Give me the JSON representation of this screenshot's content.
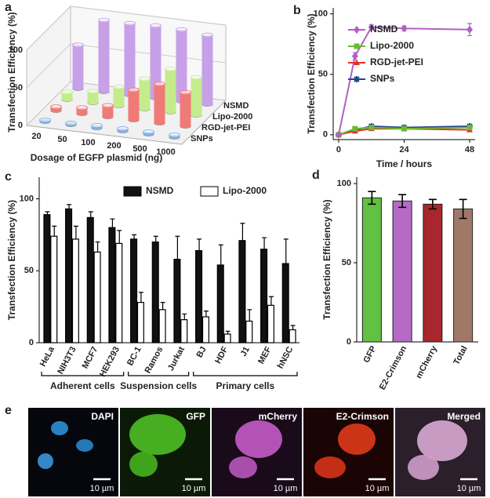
{
  "chart_data": [
    {
      "type": "bar3d",
      "panel": "a",
      "categories": [
        "20",
        "50",
        "100",
        "200",
        "500",
        "1000"
      ],
      "series": [
        {
          "name": "SNPs",
          "color": "#7fb0e8",
          "values": [
            2,
            2,
            3,
            3,
            3,
            3
          ]
        },
        {
          "name": "RGD-jet-PEI",
          "color": "#f07a78",
          "values": [
            5,
            8,
            15,
            40,
            52,
            45
          ]
        },
        {
          "name": "Lipo-2000",
          "color": "#c4ec8c",
          "values": [
            10,
            15,
            25,
            40,
            57,
            50
          ]
        },
        {
          "name": "NSMD",
          "color": "#c7a0e8",
          "values": [
            58,
            95,
            95,
            96,
            95,
            92
          ]
        }
      ],
      "ylim": [
        0,
        100
      ],
      "yticks": [
        0,
        50,
        100
      ],
      "xlabel": "Dosage of EGFP plasmid (ng)",
      "ylabel": "Transfection Efficiency (%)"
    },
    {
      "type": "line",
      "panel": "b",
      "x": [
        0,
        6,
        12,
        24,
        48
      ],
      "series": [
        {
          "name": "NSMD",
          "color": "#b45fc4",
          "marker": "diamond",
          "values": [
            0,
            65,
            89,
            88,
            87
          ],
          "errors": [
            0,
            3,
            2,
            2,
            5
          ]
        },
        {
          "name": "Lipo-2000",
          "color": "#6cbb2f",
          "marker": "square",
          "values": [
            0,
            5,
            6,
            5,
            6
          ],
          "errors": [
            0,
            1,
            1,
            1,
            1
          ]
        },
        {
          "name": "RGD-jet-PEI",
          "color": "#e0302a",
          "marker": "triangle",
          "values": [
            0,
            3,
            5,
            5,
            4
          ],
          "errors": [
            0,
            1,
            1,
            1,
            1
          ]
        },
        {
          "name": "SNPs",
          "color": "#23448f",
          "marker": "cross",
          "values": [
            0,
            4,
            7,
            6,
            7
          ],
          "errors": [
            0,
            1,
            1,
            1,
            1
          ]
        }
      ],
      "xlim": [
        -2,
        50
      ],
      "xticks": [
        0,
        24,
        48
      ],
      "ylim": [
        -4,
        105
      ],
      "yticks": [
        0,
        50,
        100
      ],
      "xlabel": "Time / hours",
      "ylabel": "Transfection Efficiency (%)"
    },
    {
      "type": "grouped-bar",
      "panel": "c",
      "categories": [
        "HeLa",
        "NIH3T3",
        "MCF7",
        "HEK293",
        "BC-1",
        "Ramos",
        "Jurkat",
        "BJ",
        "HDF",
        "J1",
        "MEF",
        "hNSC"
      ],
      "groups": [
        {
          "name": "Adherent cells",
          "size": 4
        },
        {
          "name": "Suspension cells",
          "size": 3
        },
        {
          "name": "Primary cells",
          "size": 5
        }
      ],
      "series": [
        {
          "name": "NSMD",
          "color": "#111111",
          "values": [
            89,
            93,
            87,
            80,
            72,
            70,
            58,
            64,
            54,
            71,
            65,
            55
          ],
          "errors": [
            2,
            3,
            4,
            6,
            3,
            4,
            16,
            8,
            14,
            12,
            8,
            17
          ]
        },
        {
          "name": "Lipo-2000",
          "color": "#ffffff",
          "values": [
            74,
            72,
            63,
            69,
            28,
            23,
            16,
            18,
            6,
            15,
            26,
            9
          ],
          "errors": [
            7,
            9,
            7,
            9,
            7,
            5,
            4,
            4,
            2,
            8,
            6,
            3
          ]
        }
      ],
      "ylim": [
        0,
        115
      ],
      "yticks": [
        0,
        50,
        100
      ],
      "ylabel": "Transfection Efficiency (%)"
    },
    {
      "type": "bar",
      "panel": "d",
      "categories": [
        "GFP",
        "E2-Crimson",
        "mCherry",
        "Total"
      ],
      "values": [
        91,
        89,
        87,
        84
      ],
      "errors": [
        4,
        4,
        3,
        6
      ],
      "colors": [
        "#62c043",
        "#b56ac4",
        "#a8272c",
        "#a07868"
      ],
      "ylim": [
        0,
        104
      ],
      "yticks": [
        0,
        50,
        100
      ],
      "ylabel": "Transfection Efficiency (%)"
    }
  ],
  "image_panel": {
    "panel": "e",
    "images": [
      {
        "label": "DAPI",
        "scale": "10 µm"
      },
      {
        "label": "GFP",
        "scale": "10 µm"
      },
      {
        "label": "mCherry",
        "scale": "10 µm"
      },
      {
        "label": "E2-Crimson",
        "scale": "10 µm"
      },
      {
        "label": "Merged",
        "scale": "10 µm"
      }
    ]
  }
}
